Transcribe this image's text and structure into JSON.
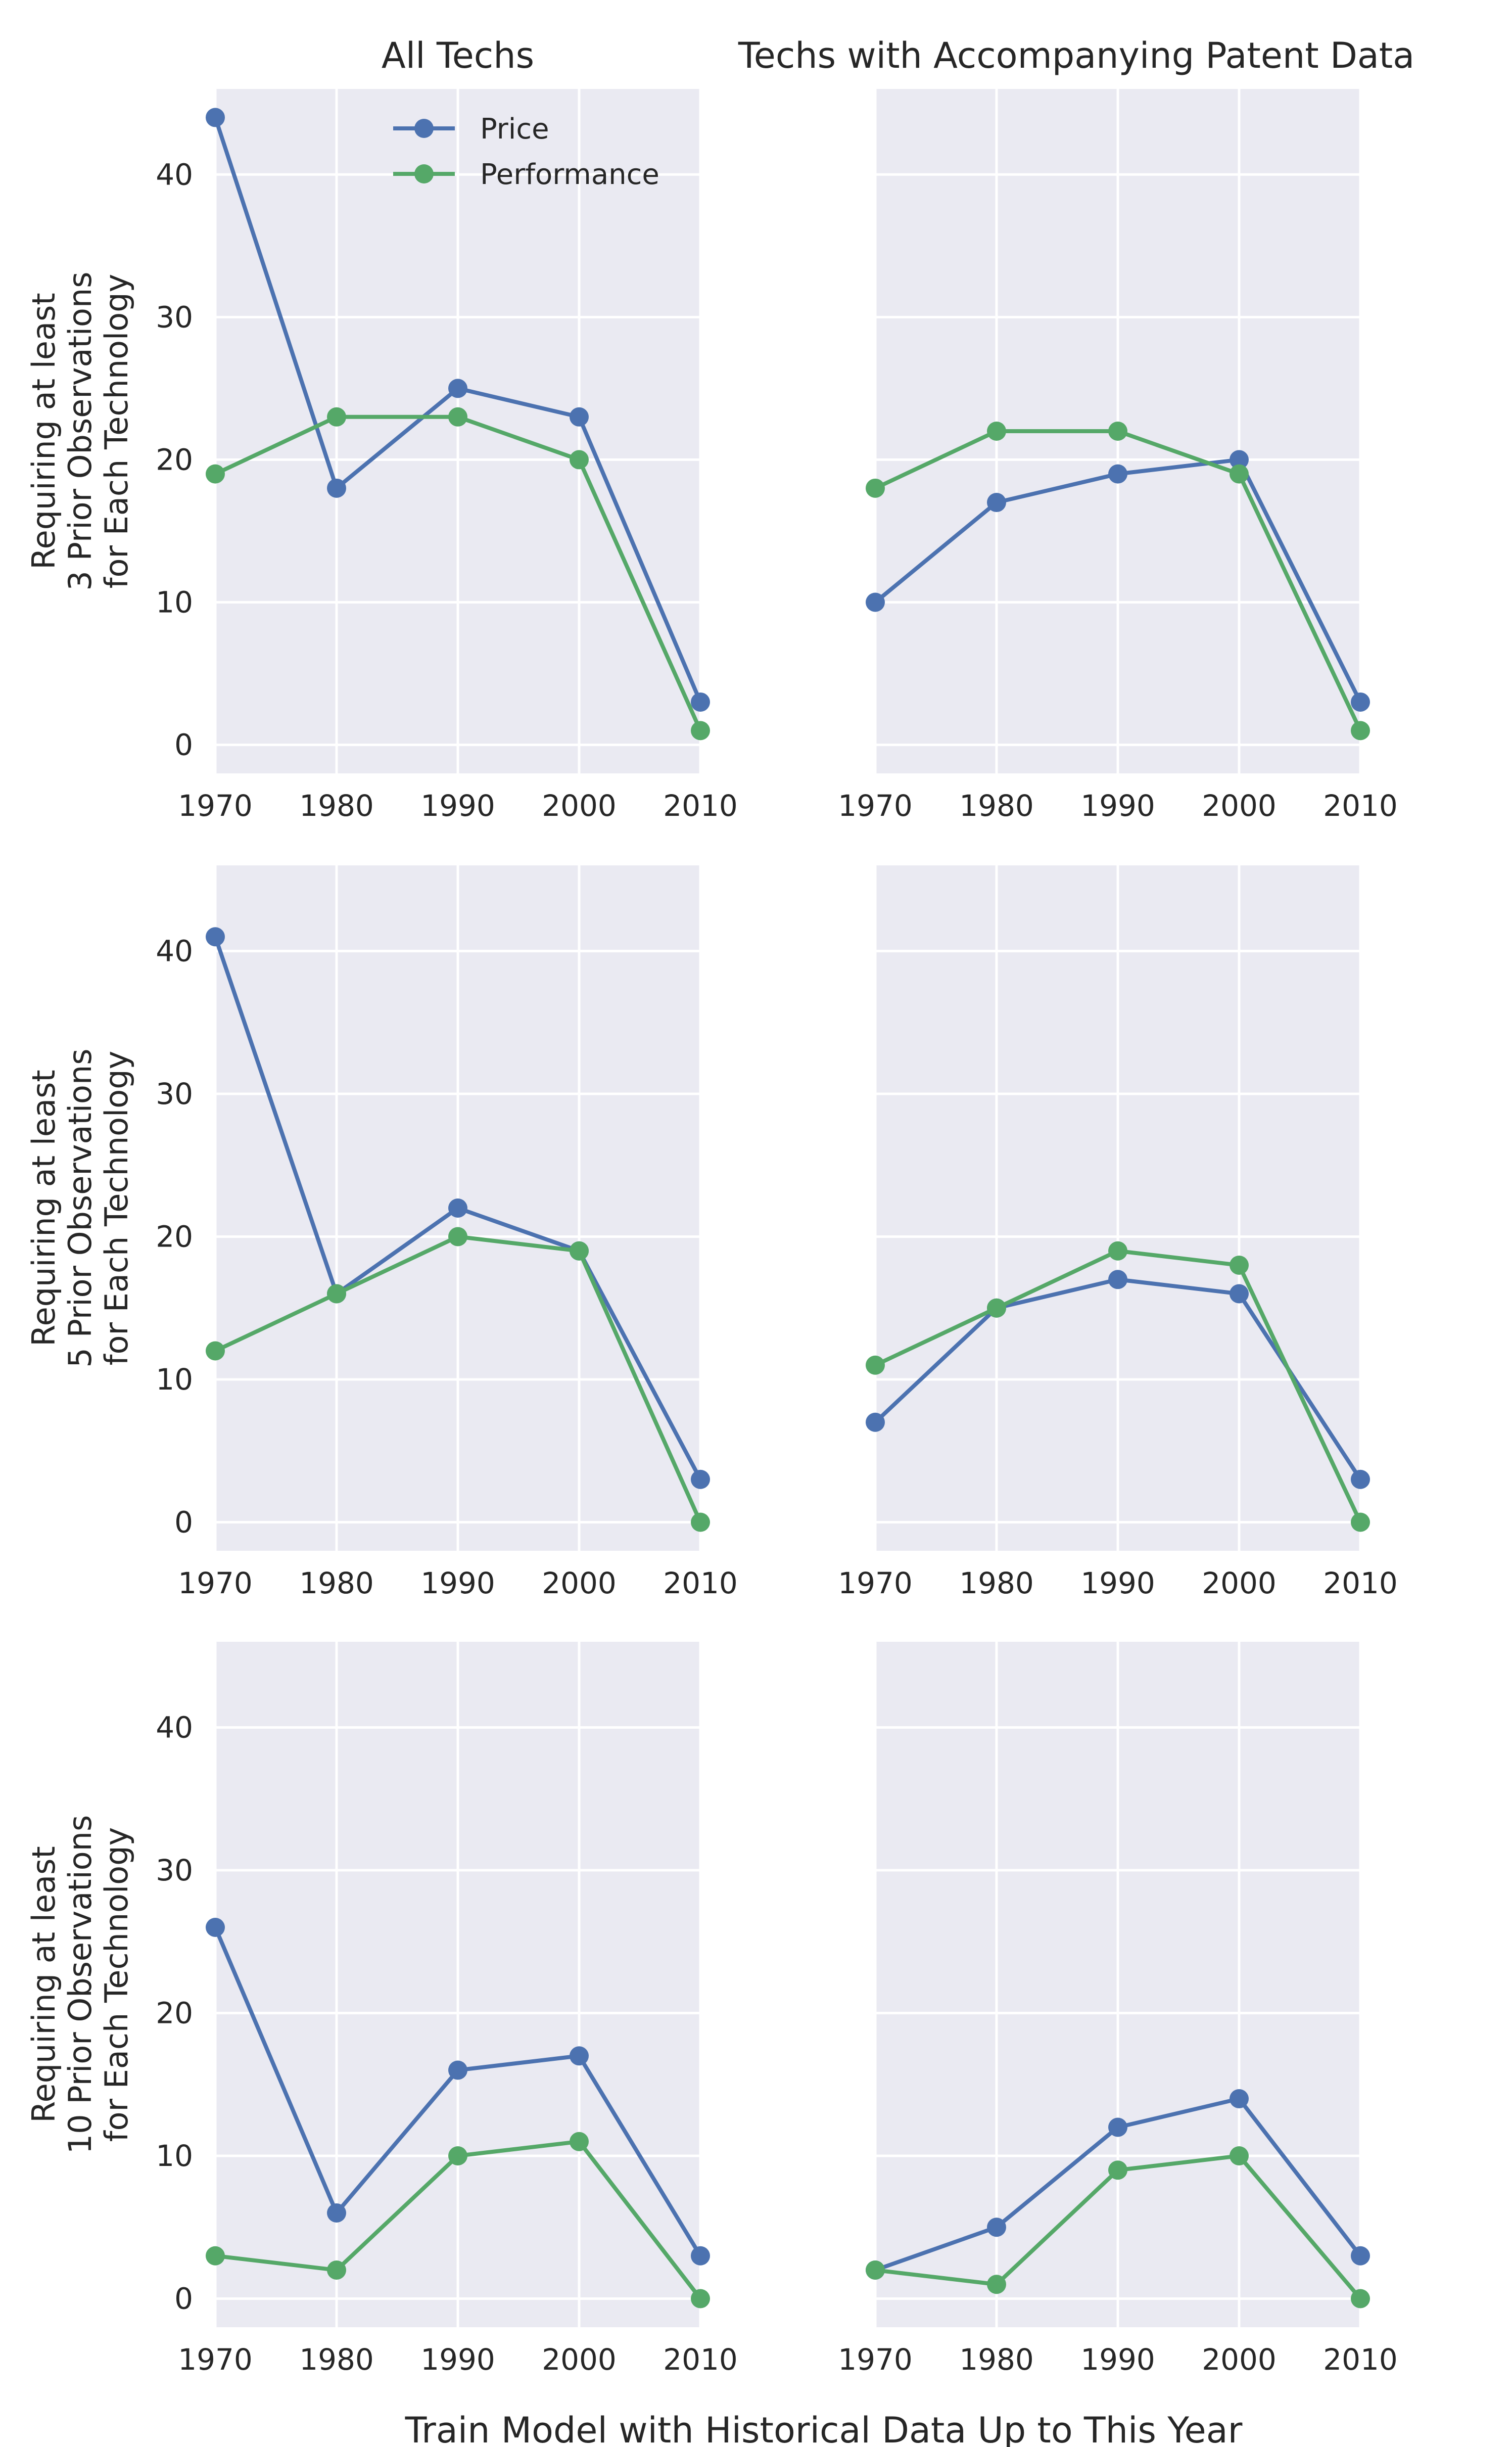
{
  "chart_data": {
    "type": "line",
    "layout": "3 rows x 2 columns, shared axes",
    "column_titles": [
      "All Techs",
      "Techs with Accompanying Patent Data"
    ],
    "row_labels": [
      [
        "Requiring at least",
        "3 Prior Observations",
        "for Each Technology"
      ],
      [
        "Requiring at least",
        "5 Prior Observations",
        "for Each Technology"
      ],
      [
        "Requiring at least",
        "10 Prior Observations",
        "for Each Technology"
      ]
    ],
    "xlabel": "Train Model with Historical Data Up to This Year",
    "x": [
      1970,
      1980,
      1990,
      2000,
      2010
    ],
    "x_ticks": [
      "1970",
      "1980",
      "1990",
      "2000",
      "2010"
    ],
    "y_ticks": [
      "0",
      "10",
      "20",
      "30",
      "40"
    ],
    "xlim": [
      1970,
      2010
    ],
    "ylim": [
      -2,
      46
    ],
    "grid": true,
    "legend": {
      "placement": "top-center of first panel",
      "entries": [
        "Price",
        "Performance"
      ]
    },
    "colors": {
      "Price": "#4c72b0",
      "Performance": "#55a868"
    },
    "panels": [
      {
        "row": 0,
        "col": 0,
        "series": [
          {
            "name": "Price",
            "values": [
              44,
              18,
              25,
              23,
              3
            ]
          },
          {
            "name": "Performance",
            "values": [
              19,
              23,
              23,
              20,
              1
            ]
          }
        ]
      },
      {
        "row": 0,
        "col": 1,
        "series": [
          {
            "name": "Price",
            "values": [
              10,
              17,
              19,
              20,
              3
            ]
          },
          {
            "name": "Performance",
            "values": [
              18,
              22,
              22,
              19,
              1
            ]
          }
        ]
      },
      {
        "row": 1,
        "col": 0,
        "series": [
          {
            "name": "Price",
            "values": [
              41,
              16,
              22,
              19,
              3
            ]
          },
          {
            "name": "Performance",
            "values": [
              12,
              16,
              20,
              19,
              0
            ]
          }
        ]
      },
      {
        "row": 1,
        "col": 1,
        "series": [
          {
            "name": "Price",
            "values": [
              7,
              15,
              17,
              16,
              3
            ]
          },
          {
            "name": "Performance",
            "values": [
              11,
              15,
              19,
              18,
              0
            ]
          }
        ]
      },
      {
        "row": 2,
        "col": 0,
        "series": [
          {
            "name": "Price",
            "values": [
              26,
              6,
              16,
              17,
              3
            ]
          },
          {
            "name": "Performance",
            "values": [
              3,
              2,
              10,
              11,
              0
            ]
          }
        ]
      },
      {
        "row": 2,
        "col": 1,
        "series": [
          {
            "name": "Price",
            "values": [
              2,
              5,
              12,
              14,
              3
            ]
          },
          {
            "name": "Performance",
            "values": [
              2,
              1,
              9,
              10,
              0
            ]
          }
        ]
      }
    ]
  }
}
